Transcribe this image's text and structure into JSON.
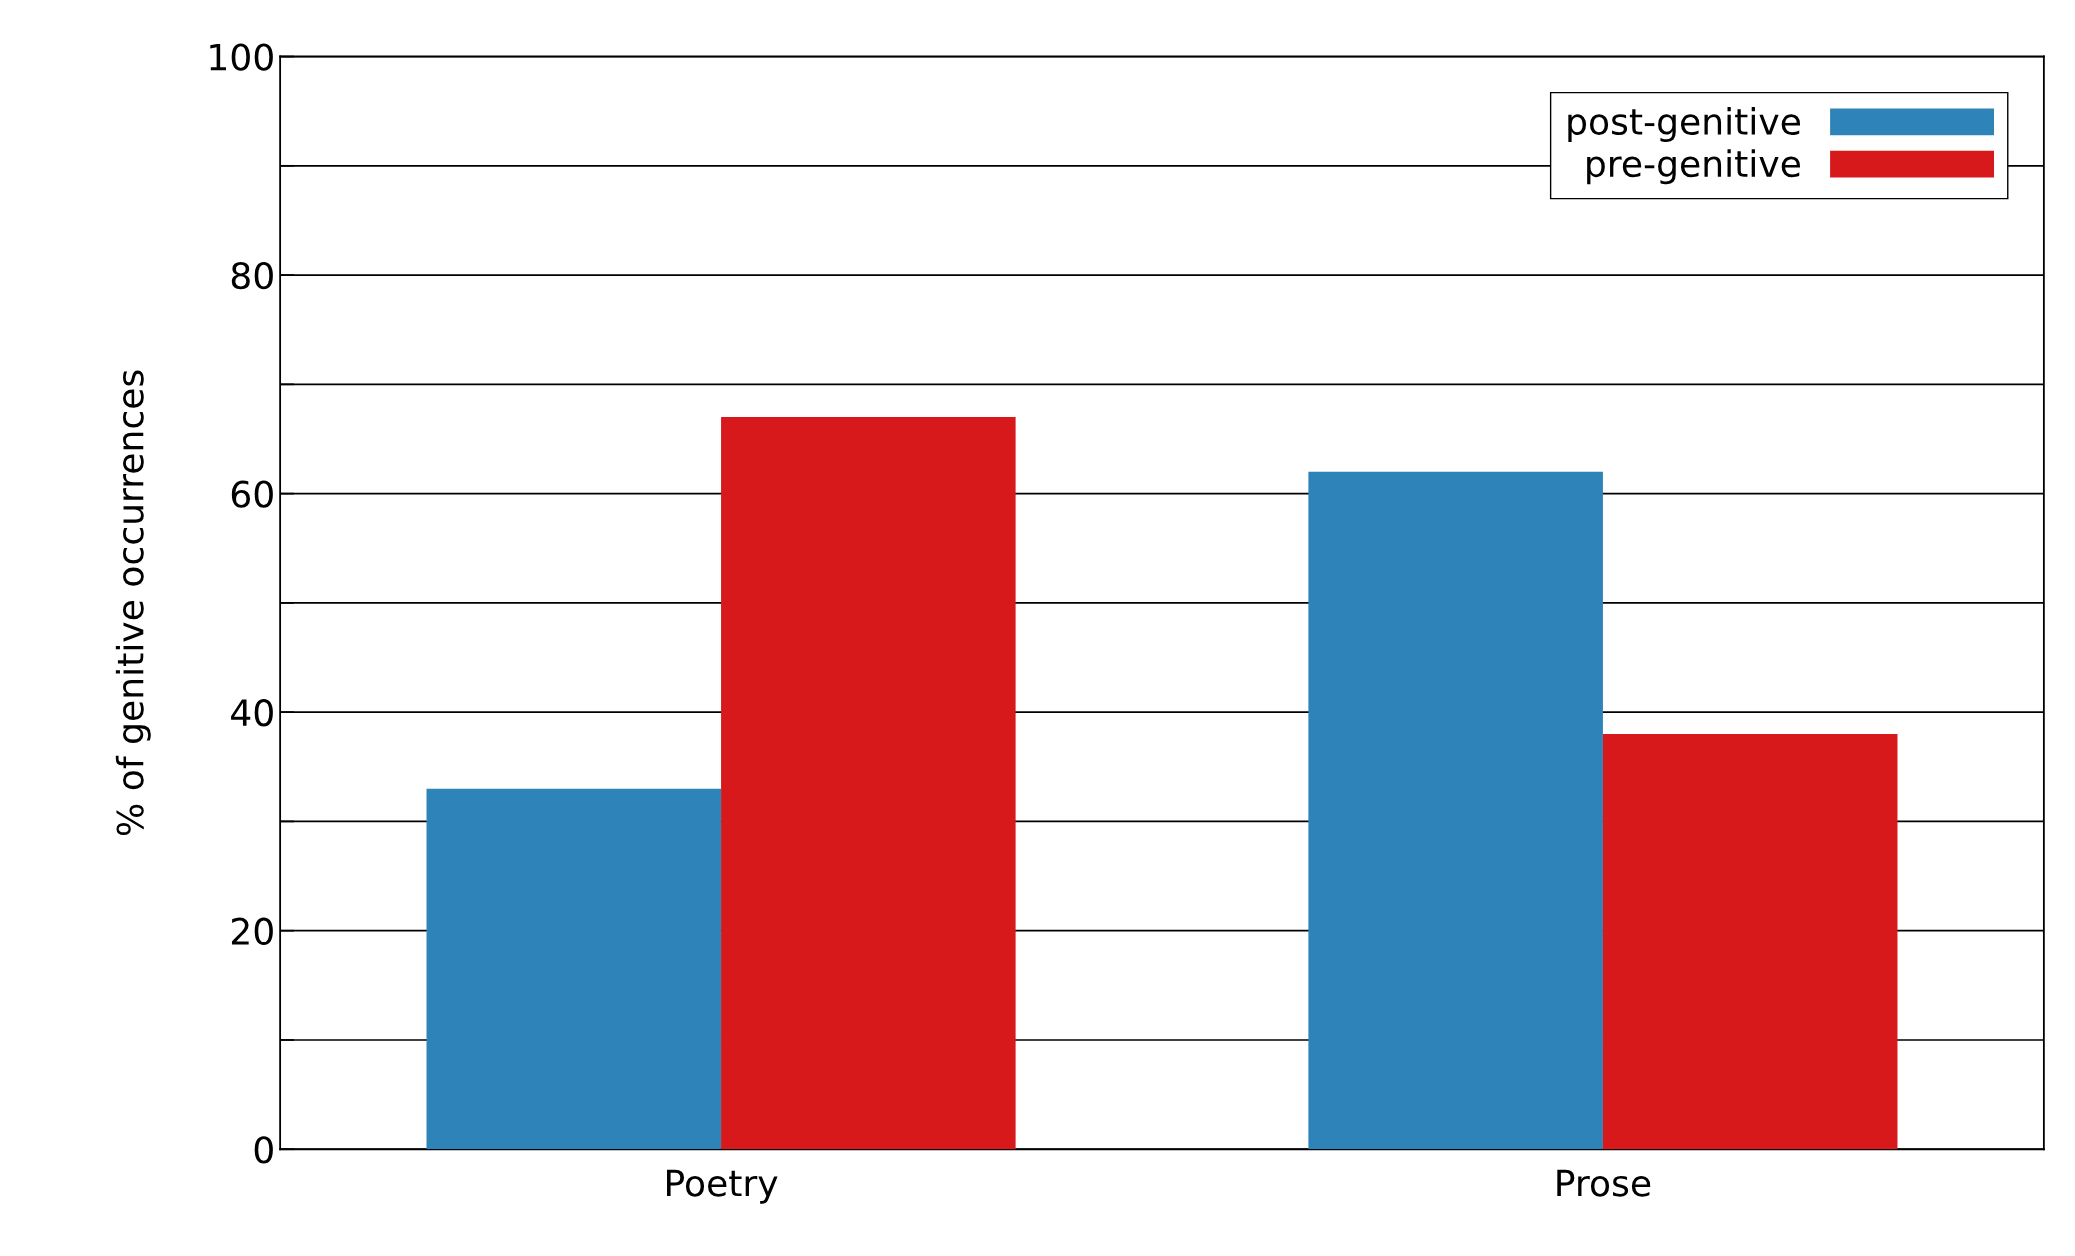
{
  "chart_data": {
    "type": "bar",
    "ylabel": "% of genitive occurrences",
    "categories": [
      "Poetry",
      "Prose"
    ],
    "series": [
      {
        "name": "post-genitive",
        "color": "#2e83b9",
        "values": [
          33,
          62
        ]
      },
      {
        "name": "pre-genitive",
        "color": "#d7191c",
        "values": [
          67,
          38
        ]
      }
    ],
    "ylim": [
      0,
      100
    ],
    "yticks": [
      0,
      {
        "value": 10,
        "label": null
      },
      20,
      {
        "value": 30,
        "label": null
      },
      40,
      {
        "value": 50,
        "label": null
      },
      60,
      {
        "value": 70,
        "label": null
      },
      80,
      {
        "value": 90,
        "label": null
      },
      100
    ],
    "grid": "y",
    "legend": "top right"
  }
}
